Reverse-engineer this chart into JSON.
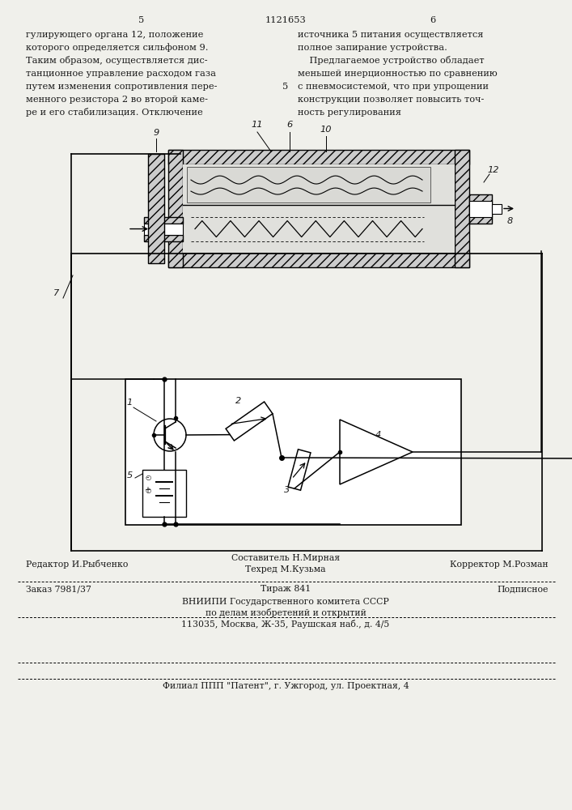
{
  "bg_color": "#f0f0eb",
  "text_color": "#1a1a1a",
  "page_header": "1121653",
  "page_left": "5",
  "page_right": "6",
  "left_text": [
    "гулирующего органа 12, положение",
    "которого определяется сильфоном 9.",
    "Таким образом, осуществляется дис-",
    "танционное управление расходом газа",
    "путем изменения сопротивления пере-",
    "менного резистора 2 во второй каме-",
    "ре и его стабилизация. Отключение"
  ],
  "right_text": [
    "источника 5 питания осуществляется",
    "полное запирание устройства.",
    "    Предлагаемое устройство обладает",
    "меньшей инерционностью по сравнению",
    "с пневмосистемой, что при упрощении",
    "конструкции позволяет повысить точ-",
    "ность регулирования"
  ],
  "line_number_right": "5",
  "footer_line1_left": "Редактор И.Рыбченко",
  "footer_line1_center1": "Составитель Н.Мирная",
  "footer_line1_center2": "Техред М.Кузьма",
  "footer_line1_right": "Корректор М.Розман",
  "footer_line2_left": "Заказ 7981/37",
  "footer_line2_center": "Тираж 841",
  "footer_line2_right": "Подписное",
  "footer_org": "ВНИИПИ Государственного комитета СССР",
  "footer_org2": "по делам изобретений и открытий",
  "footer_addr": "113035, Москва, Ж-35, Раушская наб., д. 4/5",
  "footer_filial": "Филиал ППП \"Патент\", г. Ужгород, ул. Проектная, 4",
  "hatch_color": "#555555"
}
